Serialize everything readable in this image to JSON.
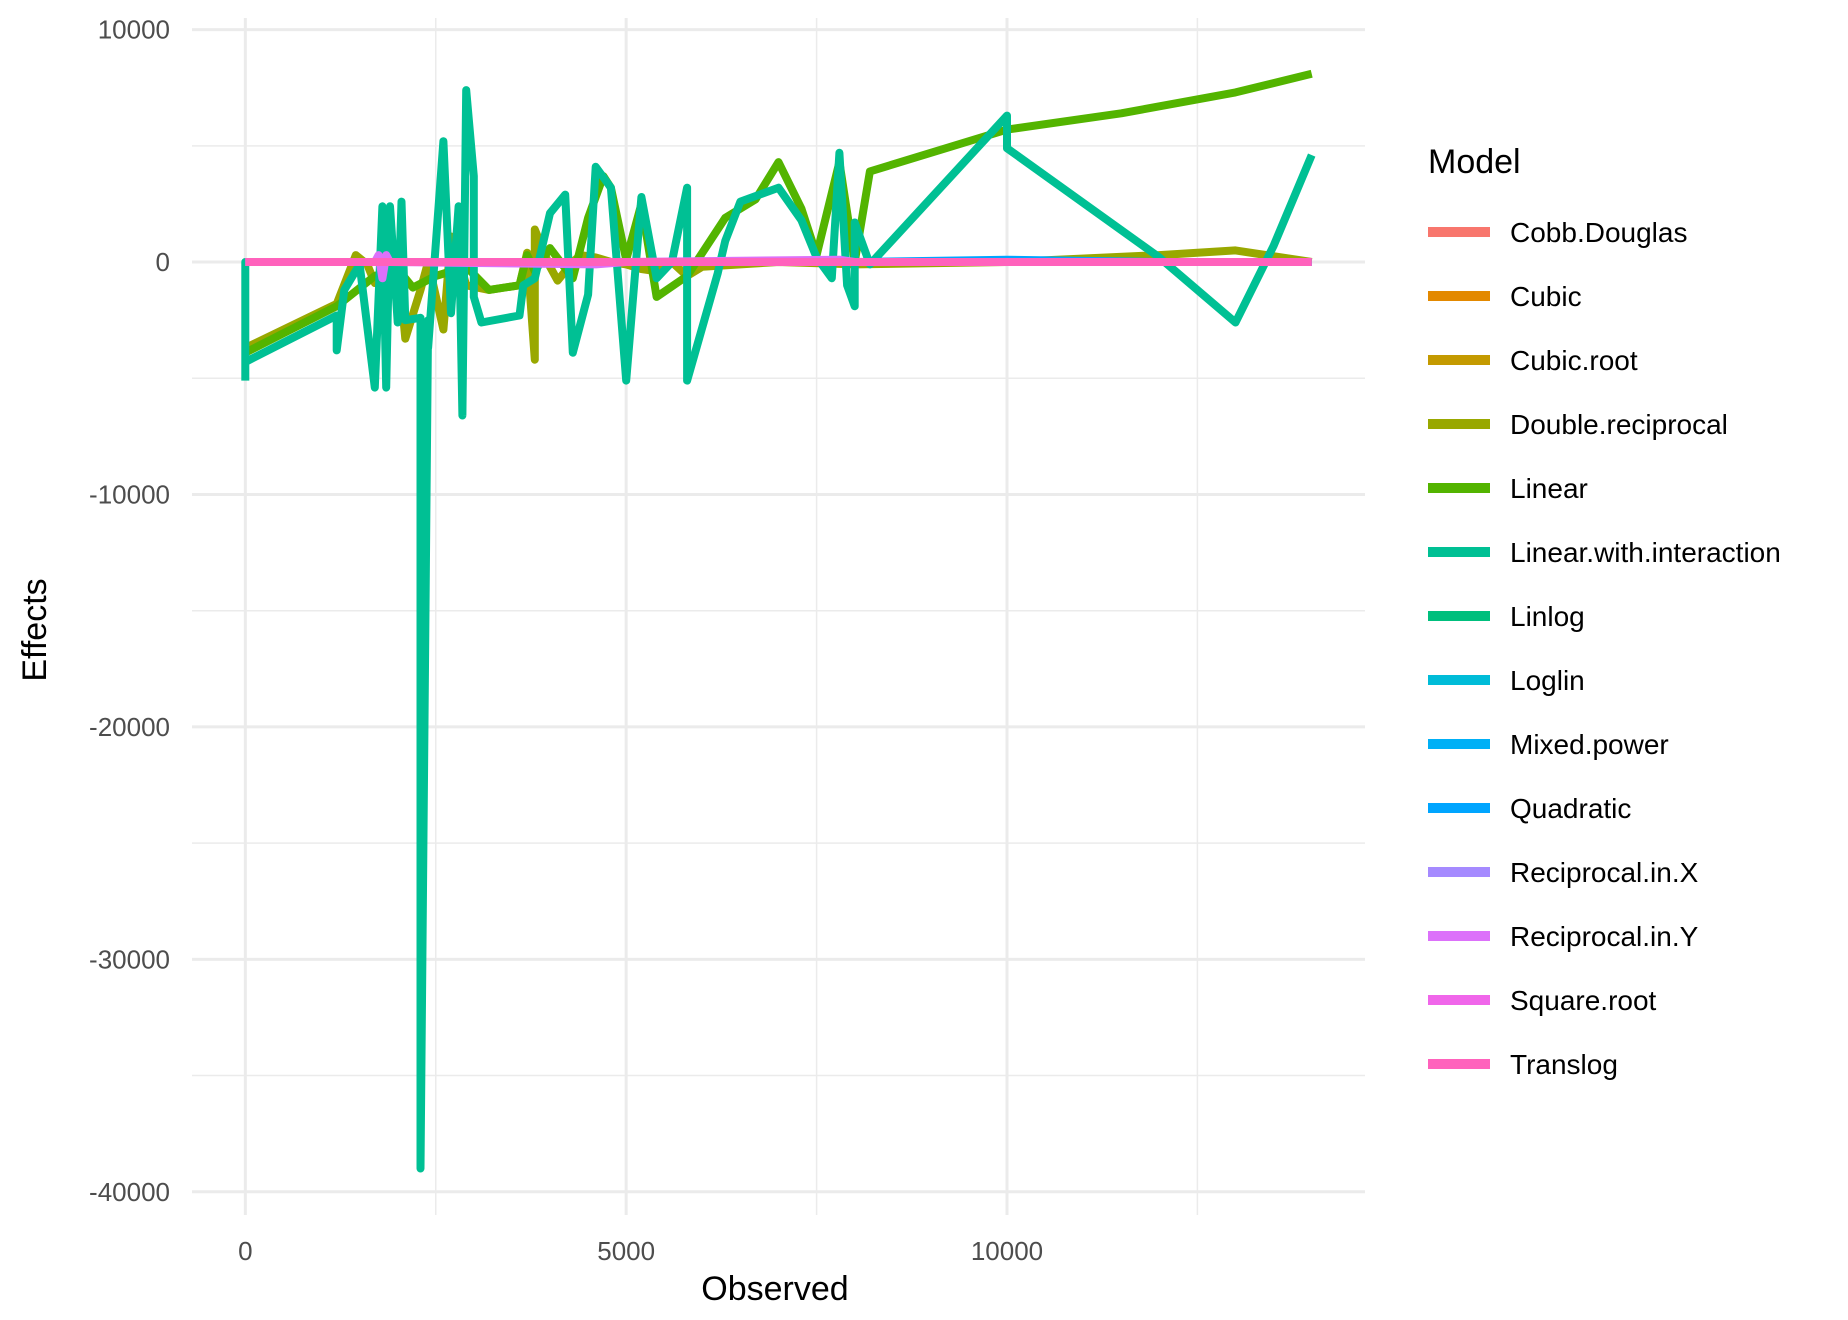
{
  "chart_data": {
    "type": "line",
    "xlabel": "Observed",
    "ylabel": "Effects",
    "xlim": [
      -700,
      14700
    ],
    "ylim": [
      -41000,
      10500
    ],
    "x_ticks": [
      0,
      5000,
      10000
    ],
    "y_ticks": [
      10000,
      0,
      -10000,
      -20000,
      -30000,
      -40000
    ],
    "legend": {
      "title": "Model",
      "placement": "right"
    },
    "grid": true,
    "series": [
      {
        "name": "Cobb.Douglas",
        "color": "#F8766D",
        "points": [
          [
            0,
            0
          ],
          [
            2000,
            0
          ],
          [
            5000,
            0
          ],
          [
            8000,
            0
          ],
          [
            10000,
            0
          ],
          [
            14000,
            0
          ]
        ]
      },
      {
        "name": "Cubic",
        "color": "#E38900",
        "points": [
          [
            0,
            0
          ],
          [
            2000,
            0
          ],
          [
            5000,
            0
          ],
          [
            8000,
            0
          ],
          [
            10000,
            0
          ],
          [
            14000,
            0
          ]
        ]
      },
      {
        "name": "Cubic.root",
        "color": "#C49A00",
        "points": [
          [
            0,
            0
          ],
          [
            2000,
            0
          ],
          [
            5000,
            0
          ],
          [
            8000,
            0
          ],
          [
            10000,
            0
          ],
          [
            14000,
            0
          ]
        ]
      },
      {
        "name": "Double.reciprocal",
        "color": "#99A800",
        "points": [
          [
            0,
            -3700
          ],
          [
            1200,
            -1800
          ],
          [
            1450,
            300
          ],
          [
            1600,
            -100
          ],
          [
            1700,
            -900
          ],
          [
            2000,
            200
          ],
          [
            2100,
            -3300
          ],
          [
            2300,
            -1200
          ],
          [
            2400,
            0
          ],
          [
            2600,
            -2900
          ],
          [
            2700,
            1100
          ],
          [
            2800,
            200
          ],
          [
            2900,
            -1000
          ],
          [
            3200,
            -1200
          ],
          [
            3600,
            -1000
          ],
          [
            3700,
            400
          ],
          [
            3800,
            -4200
          ],
          [
            3800,
            1400
          ],
          [
            4000,
            -200
          ],
          [
            4100,
            -800
          ],
          [
            4300,
            0
          ],
          [
            4400,
            300
          ],
          [
            4600,
            200
          ],
          [
            4800,
            0
          ],
          [
            5000,
            -100
          ],
          [
            5200,
            -300
          ],
          [
            5400,
            -400
          ],
          [
            5600,
            0
          ],
          [
            5800,
            -600
          ],
          [
            6000,
            -200
          ],
          [
            7000,
            0
          ],
          [
            8000,
            -100
          ],
          [
            10000,
            0
          ],
          [
            12000,
            300
          ],
          [
            13000,
            500
          ],
          [
            14000,
            0
          ]
        ]
      },
      {
        "name": "Linear",
        "color": "#53B400",
        "points": [
          [
            0,
            -3900
          ],
          [
            1200,
            -1900
          ],
          [
            1700,
            -600
          ],
          [
            2000,
            -300
          ],
          [
            2200,
            -1100
          ],
          [
            2500,
            -600
          ],
          [
            2900,
            -200
          ],
          [
            3200,
            -1200
          ],
          [
            3600,
            -1000
          ],
          [
            3700,
            300
          ],
          [
            3800,
            -400
          ],
          [
            4000,
            600
          ],
          [
            4300,
            -700
          ],
          [
            4500,
            1900
          ],
          [
            4700,
            3700
          ],
          [
            4800,
            3200
          ],
          [
            5000,
            100
          ],
          [
            5200,
            2500
          ],
          [
            5400,
            -1500
          ],
          [
            5800,
            -600
          ],
          [
            6300,
            1900
          ],
          [
            6700,
            2700
          ],
          [
            7000,
            4300
          ],
          [
            7300,
            2300
          ],
          [
            7500,
            300
          ],
          [
            7800,
            4300
          ],
          [
            8000,
            0
          ],
          [
            8200,
            3900
          ],
          [
            10000,
            5700
          ],
          [
            11500,
            6400
          ],
          [
            13000,
            7300
          ],
          [
            14000,
            8100
          ]
        ]
      },
      {
        "name": "Linear.with.interaction",
        "color": "#00C094",
        "points": [
          [
            0,
            -5100
          ],
          [
            0,
            0
          ],
          [
            0,
            -4300
          ],
          [
            1200,
            -2300
          ],
          [
            1200,
            -3800
          ],
          [
            1300,
            -1200
          ],
          [
            1500,
            -100
          ],
          [
            1700,
            -5400
          ],
          [
            1800,
            2400
          ],
          [
            1850,
            -5400
          ],
          [
            1900,
            2400
          ],
          [
            2000,
            -2600
          ],
          [
            2050,
            2600
          ],
          [
            2100,
            -2500
          ],
          [
            2300,
            -2400
          ],
          [
            2300,
            -39000
          ],
          [
            2400,
            -2500
          ],
          [
            2400,
            -3700
          ],
          [
            2600,
            5200
          ],
          [
            2700,
            -2200
          ],
          [
            2800,
            2400
          ],
          [
            2850,
            -6600
          ],
          [
            2900,
            7400
          ],
          [
            3000,
            3700
          ],
          [
            3000,
            -1500
          ],
          [
            3100,
            -2600
          ],
          [
            3600,
            -2300
          ],
          [
            3650,
            -1000
          ],
          [
            3800,
            -700
          ],
          [
            4000,
            2100
          ],
          [
            4200,
            2900
          ],
          [
            4300,
            -3900
          ],
          [
            4500,
            -1400
          ],
          [
            4600,
            4100
          ],
          [
            4800,
            3200
          ],
          [
            5000,
            -5100
          ],
          [
            5200,
            2800
          ],
          [
            5400,
            -700
          ],
          [
            5600,
            0
          ],
          [
            5800,
            3200
          ],
          [
            5800,
            -5100
          ],
          [
            6200,
            -500
          ],
          [
            6300,
            900
          ],
          [
            6500,
            2600
          ],
          [
            7000,
            3200
          ],
          [
            7300,
            1800
          ],
          [
            7500,
            200
          ],
          [
            7700,
            -700
          ],
          [
            7800,
            4700
          ],
          [
            7900,
            -1000
          ],
          [
            8000,
            -1900
          ],
          [
            8000,
            1700
          ],
          [
            8200,
            -100
          ],
          [
            10000,
            6300
          ],
          [
            10000,
            4900
          ],
          [
            12000,
            200
          ],
          [
            13000,
            -2600
          ],
          [
            13500,
            700
          ],
          [
            14000,
            4600
          ]
        ]
      },
      {
        "name": "Linlog",
        "color": "#00BF7D",
        "points": [
          [
            0,
            0
          ],
          [
            2000,
            0
          ],
          [
            5000,
            0
          ],
          [
            8000,
            0
          ],
          [
            10000,
            0
          ],
          [
            14000,
            0
          ]
        ]
      },
      {
        "name": "Loglin",
        "color": "#00BCD8",
        "points": [
          [
            0,
            0
          ],
          [
            2000,
            0
          ],
          [
            5000,
            0
          ],
          [
            8000,
            0
          ],
          [
            10000,
            0
          ],
          [
            14000,
            0
          ]
        ]
      },
      {
        "name": "Mixed.power",
        "color": "#00B0F6",
        "points": [
          [
            0,
            0
          ],
          [
            2000,
            0
          ],
          [
            5000,
            0
          ],
          [
            8000,
            0
          ],
          [
            10000,
            0
          ],
          [
            14000,
            0
          ]
        ]
      },
      {
        "name": "Quadratic",
        "color": "#00A5FF",
        "points": [
          [
            0,
            0
          ],
          [
            2000,
            0
          ],
          [
            5000,
            0
          ],
          [
            8000,
            0
          ],
          [
            10000,
            100
          ],
          [
            12000,
            0
          ],
          [
            14000,
            0
          ]
        ]
      },
      {
        "name": "Reciprocal.in.X",
        "color": "#A58AFF",
        "points": [
          [
            0,
            0
          ],
          [
            2000,
            0
          ],
          [
            5000,
            0
          ],
          [
            8000,
            0
          ],
          [
            10000,
            0
          ],
          [
            14000,
            0
          ]
        ]
      },
      {
        "name": "Reciprocal.in.Y",
        "color": "#DC71FA",
        "points": [
          [
            0,
            0
          ],
          [
            1700,
            0
          ],
          [
            1750,
            300
          ],
          [
            1800,
            -700
          ],
          [
            1850,
            300
          ],
          [
            1900,
            0
          ],
          [
            4600,
            -100
          ],
          [
            5000,
            0
          ],
          [
            7800,
            100
          ],
          [
            8000,
            0
          ],
          [
            14000,
            0
          ]
        ]
      },
      {
        "name": "Square.root",
        "color": "#F066EA",
        "points": [
          [
            0,
            0
          ],
          [
            2000,
            0
          ],
          [
            5000,
            0
          ],
          [
            8000,
            0
          ],
          [
            10000,
            0
          ],
          [
            14000,
            0
          ]
        ]
      },
      {
        "name": "Translog",
        "color": "#FF62BC",
        "points": [
          [
            0,
            0
          ],
          [
            1200,
            0
          ],
          [
            2000,
            0
          ],
          [
            5000,
            0
          ],
          [
            8000,
            0
          ],
          [
            10000,
            0
          ],
          [
            14000,
            0
          ]
        ]
      }
    ]
  }
}
